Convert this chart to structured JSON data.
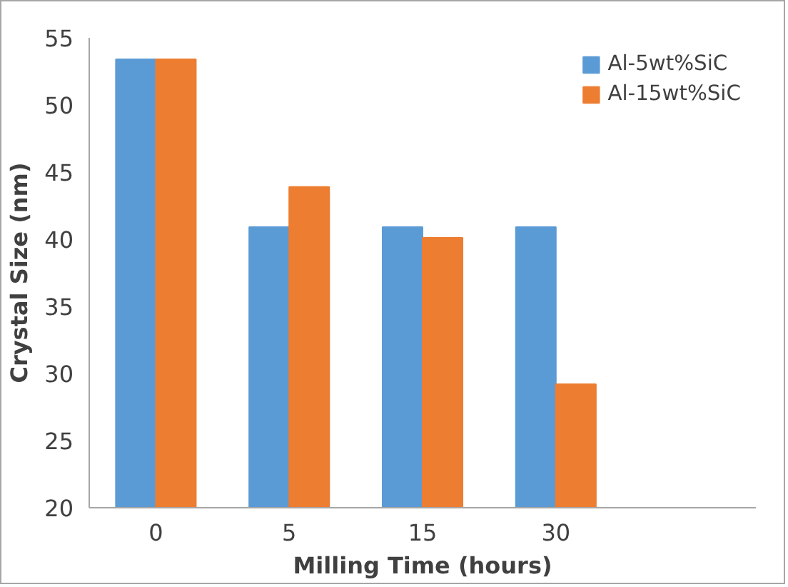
{
  "chart_data": {
    "type": "bar",
    "xlabel": "Milling Time (hours)",
    "ylabel": "Crystal Size (nm)",
    "categories": [
      "0",
      "5",
      "15",
      "30",
      null
    ],
    "series": [
      {
        "name": "Al-5wt%SiC",
        "color": "#5b9bd5",
        "values": [
          53.4,
          40.9,
          40.9,
          40.9,
          null
        ]
      },
      {
        "name": "Al-15wt%SiC",
        "color": "#ed7d31",
        "values": [
          53.4,
          43.9,
          40.1,
          29.2,
          null
        ]
      }
    ],
    "ylim": [
      20,
      55
    ],
    "yticks": [
      20,
      25,
      30,
      35,
      40,
      45,
      50,
      55
    ],
    "grid": false,
    "legend": "top right"
  }
}
